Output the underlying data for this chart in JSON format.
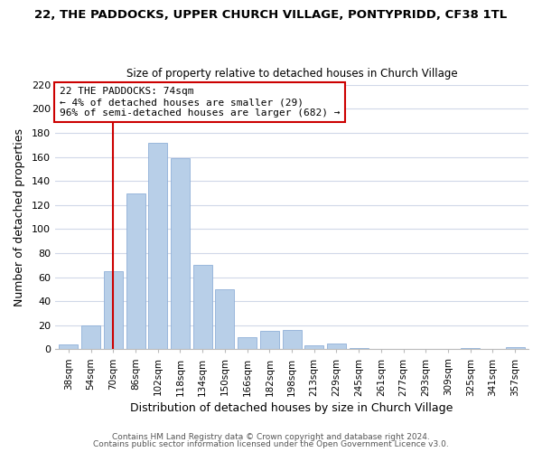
{
  "title": "22, THE PADDOCKS, UPPER CHURCH VILLAGE, PONTYPRIDD, CF38 1TL",
  "subtitle": "Size of property relative to detached houses in Church Village",
  "xlabel": "Distribution of detached houses by size in Church Village",
  "ylabel": "Number of detached properties",
  "bar_labels": [
    "38sqm",
    "54sqm",
    "70sqm",
    "86sqm",
    "102sqm",
    "118sqm",
    "134sqm",
    "150sqm",
    "166sqm",
    "182sqm",
    "198sqm",
    "213sqm",
    "229sqm",
    "245sqm",
    "261sqm",
    "277sqm",
    "293sqm",
    "309sqm",
    "325sqm",
    "341sqm",
    "357sqm"
  ],
  "bar_heights": [
    4,
    20,
    65,
    130,
    172,
    159,
    70,
    50,
    10,
    15,
    16,
    3,
    5,
    1,
    0,
    0,
    0,
    0,
    1,
    0,
    2
  ],
  "bar_color": "#b8cfe8",
  "bar_edge_color": "#8fb0d8",
  "vline_x": 2,
  "vline_color": "#cc0000",
  "annotation_text": "22 THE PADDOCKS: 74sqm\n← 4% of detached houses are smaller (29)\n96% of semi-detached houses are larger (682) →",
  "annotation_box_edge": "#cc0000",
  "annotation_box_face": "white",
  "ylim": [
    0,
    220
  ],
  "yticks": [
    0,
    20,
    40,
    60,
    80,
    100,
    120,
    140,
    160,
    180,
    200,
    220
  ],
  "grid_color": "#d0d8e8",
  "background_color": "#ffffff",
  "footer1": "Contains HM Land Registry data © Crown copyright and database right 2024.",
  "footer2": "Contains public sector information licensed under the Open Government Licence v3.0."
}
